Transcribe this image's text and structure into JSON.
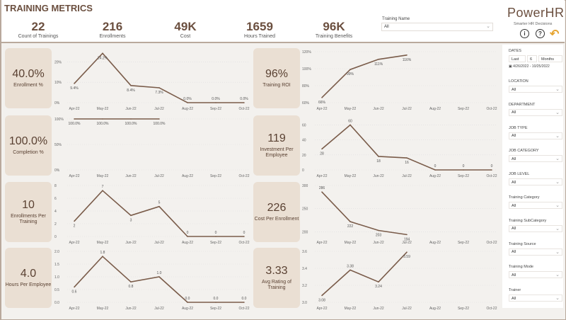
{
  "header": {
    "title": "TRAINING METRICS",
    "kpis": [
      {
        "value": "22",
        "label": "Count of Trainings"
      },
      {
        "value": "216",
        "label": "Enrollments"
      },
      {
        "value": "49K",
        "label": "Cost"
      },
      {
        "value": "1659",
        "label": "Hours Trained"
      },
      {
        "value": "96K",
        "label": "Training Benefits"
      }
    ],
    "training_name": {
      "label": "Training Name",
      "value": "All"
    },
    "brand": {
      "name": "PowerHR",
      "tagline": "Smarter HR Decisions"
    },
    "icons": [
      "info-icon",
      "help-icon",
      "undo-icon"
    ],
    "icon_glyphs": {
      "info": "i",
      "help": "?",
      "undo": "↶"
    }
  },
  "cards": [
    {
      "value": "40.0%",
      "label": "Enrollment %"
    },
    {
      "value": "100.0%",
      "label": "Completion %"
    },
    {
      "value": "10",
      "label": "Enrollments Per Training"
    },
    {
      "value": "4.0",
      "label": "Hours Per Employee"
    },
    {
      "value": "96%",
      "label": "Training ROI"
    },
    {
      "value": "119",
      "label": "Investment Per Employee"
    },
    {
      "value": "226",
      "label": "Cost Per Enrollment"
    },
    {
      "value": "3.33",
      "label": "Avg Rating of Training"
    }
  ],
  "chart_data": [
    {
      "type": "line",
      "categories": [
        "Apr-22",
        "May-22",
        "Jun-22",
        "Jul-22",
        "Aug-22",
        "Sep-22",
        "Oct-22"
      ],
      "values": [
        9.4,
        24.2,
        8.4,
        7.3,
        0,
        0,
        0
      ],
      "labels": [
        "9.4%",
        "24.2%",
        "8.4%",
        "7.3%",
        "0.0%",
        "0.0%",
        "0.0%"
      ],
      "yticks": [
        "0%",
        "10%",
        "20%"
      ],
      "ylim": [
        0,
        25
      ],
      "tickvals": [
        0,
        10,
        20
      ]
    },
    {
      "type": "line",
      "categories": [
        "Apr-22",
        "May-22",
        "Jun-22",
        "Jul-22",
        "Aug-22",
        "Sep-22",
        "Oct-22"
      ],
      "values": [
        100,
        100,
        100,
        100,
        null,
        null,
        null
      ],
      "labels": [
        "100.0%",
        "100.0%",
        "100.0%",
        "100.0%"
      ],
      "yticks": [
        "0%",
        "50%",
        "100%"
      ],
      "ylim": [
        0,
        100
      ],
      "tickvals": [
        0,
        50,
        100
      ]
    },
    {
      "type": "line",
      "categories": [
        "Apr-22",
        "May-22",
        "Jun-22",
        "Jul-22",
        "Aug-22",
        "Sep-22",
        "Oct-22"
      ],
      "values": [
        2.4,
        7.2,
        3.3,
        4.7,
        0,
        0,
        0
      ],
      "labels": [
        "2",
        "7",
        "3",
        "5",
        "0",
        "0",
        "0"
      ],
      "yticks": [
        "0",
        "2",
        "4",
        "6",
        "8"
      ],
      "ylim": [
        0,
        8
      ],
      "tickvals": [
        0,
        2,
        4,
        6,
        8
      ]
    },
    {
      "type": "line",
      "categories": [
        "Apr-22",
        "May-22",
        "Jun-22",
        "Jul-22",
        "Aug-22",
        "Sep-22",
        "Oct-22"
      ],
      "values": [
        0.6,
        1.8,
        0.8,
        1.0,
        0,
        0,
        0
      ],
      "labels": [
        "0.6",
        "1.8",
        "0.8",
        "1.0",
        "0.0",
        "0.0",
        "0.0"
      ],
      "yticks": [
        "0.0",
        "0.5",
        "1.0",
        "1.5",
        "2.0"
      ],
      "ylim": [
        0,
        2
      ],
      "tickvals": [
        0,
        0.5,
        1,
        1.5,
        2
      ]
    },
    {
      "type": "line",
      "categories": [
        "Apr-22",
        "May-22",
        "Jun-22",
        "Jul-22",
        "Aug-22",
        "Sep-22",
        "Oct-22"
      ],
      "values": [
        66,
        99,
        111,
        116,
        null,
        null,
        null
      ],
      "labels": [
        "66%",
        "99%",
        "111%",
        "116%"
      ],
      "yticks": [
        "60%",
        "80%",
        "100%",
        "120%"
      ],
      "ylim": [
        60,
        120
      ],
      "tickvals": [
        60,
        80,
        100,
        120
      ]
    },
    {
      "type": "line",
      "categories": [
        "Apr-22",
        "May-22",
        "Jun-22",
        "Jul-22",
        "Aug-22",
        "Sep-22",
        "Oct-22"
      ],
      "values": [
        28,
        60,
        18,
        16,
        0,
        0,
        0
      ],
      "labels": [
        "28",
        "60",
        "18",
        "16",
        "0",
        "0",
        "0"
      ],
      "yticks": [
        "0",
        "20",
        "40",
        "60"
      ],
      "ylim": [
        0,
        68
      ],
      "tickvals": [
        0,
        20,
        40,
        60
      ]
    },
    {
      "type": "line",
      "categories": [
        "Apr-22",
        "May-22",
        "Jun-22",
        "Jul-22",
        "Aug-22",
        "Sep-22",
        "Oct-22"
      ],
      "values": [
        286,
        222,
        203,
        194,
        null,
        null,
        null
      ],
      "labels": [
        "286",
        "222",
        "203",
        "194"
      ],
      "yticks": [
        "200",
        "250",
        "300"
      ],
      "ylim": [
        190,
        300
      ],
      "tickvals": [
        200,
        250,
        300
      ]
    },
    {
      "type": "line",
      "categories": [
        "Apr-22",
        "May-22",
        "Jun-22",
        "Jul-22",
        "Aug-22",
        "Sep-22",
        "Oct-22"
      ],
      "values": [
        3.08,
        3.38,
        3.24,
        3.59,
        null,
        null,
        null
      ],
      "labels": [
        "3.08",
        "3.38",
        "3.24",
        "3.59"
      ],
      "yticks": [
        "3.0",
        "3.2",
        "3.4",
        "3.6"
      ],
      "ylim": [
        3.0,
        3.6
      ],
      "tickvals": [
        3.0,
        3.2,
        3.4,
        3.6
      ]
    }
  ],
  "filters": {
    "dates": {
      "label": "DATES",
      "mode": "Last",
      "count": "6",
      "unit": "Months",
      "range": "4/26/2022 - 10/25/2022"
    },
    "items": [
      {
        "label": "LOCATION",
        "value": "All"
      },
      {
        "label": "DEPARTMENT",
        "value": "All"
      },
      {
        "label": "JOB TYPE",
        "value": "All"
      },
      {
        "label": "JOB CATEGORY",
        "value": "All"
      },
      {
        "label": "JOB LEVEL",
        "value": "All"
      },
      {
        "label": "Training Category",
        "value": "All"
      },
      {
        "label": "Training SubCategory",
        "value": "All"
      },
      {
        "label": "Training Source",
        "value": "All"
      },
      {
        "label": "Training Mode",
        "value": "All"
      },
      {
        "label": "Trainer",
        "value": "All"
      }
    ]
  },
  "colors": {
    "line": "#7a5c4a",
    "card": "#eadfd3",
    "accent": "#e6a532"
  }
}
